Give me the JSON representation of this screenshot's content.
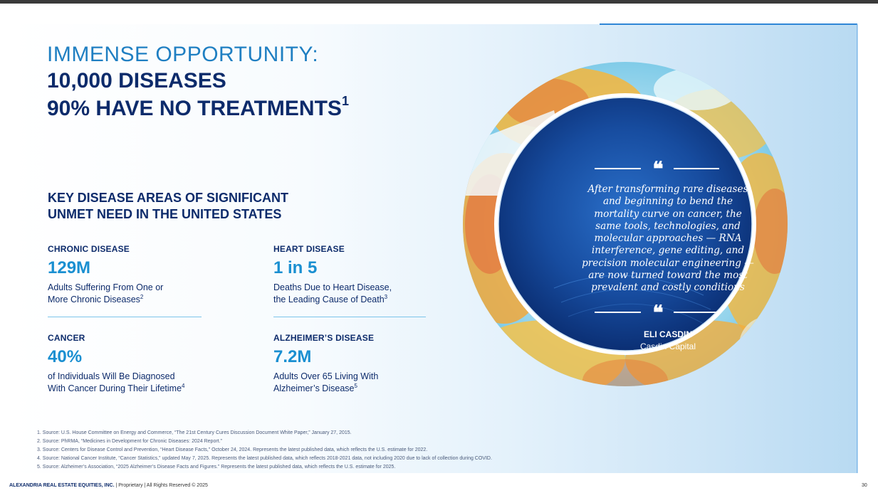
{
  "title": {
    "line1": "IMMENSE OPPORTUNITY:",
    "line2": "10,000 DISEASES",
    "line3": "90% HAVE NO TREATMENTS",
    "line3_sup": "1"
  },
  "section_heading": {
    "line1": "KEY DISEASE AREAS OF SIGNIFICANT",
    "line2": "UNMET NEED IN THE UNITED STATES"
  },
  "stats": [
    {
      "label": "CHRONIC DISEASE",
      "value": "129M",
      "desc1": "Adults Suffering From One or",
      "desc2": "More Chronic Diseases",
      "sup": "2"
    },
    {
      "label": "HEART DISEASE",
      "value": "1 in 5",
      "desc1": "Deaths Due to Heart Disease,",
      "desc2": "the Leading Cause of Death",
      "sup": "3"
    },
    {
      "label": "CANCER",
      "value": "40%",
      "desc1": "of Individuals Will Be Diagnosed",
      "desc2": "With Cancer During Their Lifetime",
      "sup": "4"
    },
    {
      "label": "ALZHEIMER’S DISEASE",
      "value": "7.2M",
      "desc1": "Adults Over 65 Living With",
      "desc2": "Alzheimer’s Disease",
      "sup": "5"
    }
  ],
  "quote": {
    "lines": [
      "After transforming rare diseases",
      "and beginning to bend the",
      "mortality curve on cancer, the",
      "same tools, technologies, and",
      "molecular approaches — RNA",
      "interference, gene editing, and",
      "precision molecular engineering —",
      "are now turned toward the most",
      "prevalent and costly conditions"
    ],
    "mark": "❝",
    "name": "ELI CASDIN",
    "org": "Casdin Capital"
  },
  "footnotes": [
    "1.  Source: U.S. House Committee on Energy and Commerce, “The 21st Century Cures Discussion Document White Paper,” January 27, 2015.",
    "2.  Source: PhRMA, “Medicines in Development for Chronic Diseases: 2024 Report.”",
    "3.  Source: Centers for Disease Control and Prevention, “Heart Disease Facts,” October 24, 2024. Represents the latest published data, which reflects the U.S. estimate for 2022.",
    "4.  Source: National Cancer Institute, “Cancer Statistics,” updated May 7, 2025. Represents the latest published data, which reflects 2018-2021 data, not including 2020 due to lack of collection during COVID.",
    "5.  Source: Alzheimer’s Association, “2025 Alzheimer’s Disease Facts and Figures.” Represents the latest published data, which reflects the U.S. estimate for 2025."
  ],
  "footer": {
    "company": "ALEXANDRIA REAL ESTATE EQUITIES, INC.",
    "rest": " | Proprietary | All Rights Reserved © 2025",
    "page": "30"
  },
  "colors": {
    "navy": "#0d2b6b",
    "accent_blue": "#1a8fd1",
    "title_blue": "#1f7fc2"
  }
}
